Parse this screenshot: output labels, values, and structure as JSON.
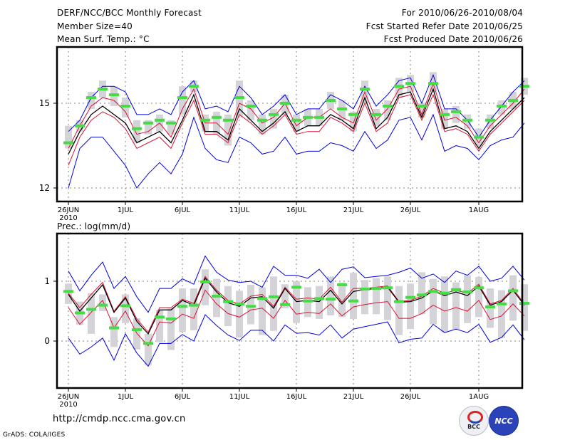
{
  "header": {
    "title": "DERF/NCC/BCC Monthly Forecast",
    "member_size": "Member Size=40",
    "variable": "Mean Surf. Temp.: °C",
    "period": "For 2010/06/26-2010/08/04",
    "started": "Fcst Started Refer Date 2010/06/25",
    "produced": "Fcst Produced Date 2010/06/26"
  },
  "footer": {
    "url": "http://cmdp.ncc.cma.gov.cn",
    "credit": "GrADS: COLA/IGES",
    "logo_left": "BCC",
    "logo_right": "NCC"
  },
  "colors": {
    "envelope": "#0000dd",
    "spread": "#dd1133",
    "mean": "#000000",
    "box": "#d3d3d8",
    "obs": "#44dd44",
    "grid": "#808080"
  },
  "chart_data": [
    {
      "type": "line",
      "title": "Mean Surf. Temp.: °C",
      "x_start": "2010-06-26",
      "x_ticks": [
        "26JUN",
        "1JUL",
        "6JUL",
        "11JUL",
        "16JUL",
        "21JUL",
        "26JUL",
        "1AUG"
      ],
      "x_tick_days": [
        0,
        5,
        10,
        15,
        20,
        25,
        30,
        36
      ],
      "x_sublabel": "2010",
      "y_ticks": [
        12,
        15
      ],
      "ylim": [
        11.5,
        17.0
      ],
      "grid": true,
      "series": [
        {
          "name": "max",
          "values": [
            14.0,
            14.4,
            15.2,
            15.6,
            15.6,
            15.4,
            14.6,
            14.6,
            14.8,
            14.6,
            15.4,
            15.8,
            14.8,
            14.9,
            14.7,
            15.6,
            15.2,
            14.6,
            14.9,
            15.3,
            14.6,
            14.8,
            14.8,
            15.3,
            15.1,
            14.8,
            15.6,
            14.9,
            15.3,
            15.8,
            15.9,
            15.0,
            16.0,
            14.8,
            14.8,
            14.4,
            13.8,
            14.4,
            14.9,
            15.4,
            15.8
          ]
        },
        {
          "name": "upper",
          "values": [
            13.4,
            14.2,
            14.9,
            15.2,
            15.1,
            14.7,
            13.9,
            14.0,
            14.3,
            13.8,
            14.8,
            15.5,
            14.3,
            14.3,
            13.9,
            15.0,
            14.8,
            14.3,
            14.5,
            15.0,
            14.2,
            14.5,
            14.5,
            14.8,
            14.5,
            14.3,
            15.4,
            14.4,
            14.8,
            15.5,
            15.6,
            14.6,
            15.7,
            14.4,
            14.5,
            14.2,
            13.6,
            14.2,
            14.6,
            15.0,
            15.5
          ]
        },
        {
          "name": "mean",
          "values": [
            13.2,
            14.0,
            14.6,
            14.9,
            14.6,
            14.3,
            13.6,
            13.8,
            14.0,
            13.6,
            14.4,
            15.3,
            14.0,
            14.0,
            13.7,
            14.8,
            14.4,
            14.0,
            14.3,
            14.7,
            14.0,
            14.2,
            14.2,
            14.6,
            14.4,
            14.1,
            15.2,
            14.1,
            14.5,
            15.3,
            15.4,
            14.5,
            15.5,
            14.1,
            14.2,
            14.0,
            13.4,
            14.0,
            14.4,
            14.8,
            15.2
          ]
        },
        {
          "name": "lower",
          "values": [
            12.8,
            13.8,
            14.4,
            14.7,
            14.5,
            14.1,
            13.4,
            13.6,
            13.8,
            13.4,
            14.3,
            15.1,
            13.9,
            13.9,
            13.6,
            14.6,
            14.3,
            13.9,
            14.2,
            14.6,
            13.9,
            14.0,
            14.0,
            14.5,
            14.3,
            14.0,
            15.0,
            14.0,
            14.3,
            15.2,
            15.3,
            14.4,
            15.3,
            14.0,
            14.1,
            13.9,
            13.3,
            13.9,
            14.3,
            14.7,
            15.1
          ]
        },
        {
          "name": "min",
          "values": [
            12.0,
            13.4,
            13.8,
            13.8,
            13.3,
            12.8,
            12.0,
            12.5,
            12.9,
            12.5,
            13.2,
            14.5,
            13.4,
            13.0,
            12.9,
            13.8,
            13.6,
            13.2,
            13.3,
            13.8,
            13.2,
            13.3,
            13.3,
            13.6,
            13.5,
            13.3,
            14.0,
            13.4,
            13.7,
            14.4,
            14.5,
            13.7,
            14.6,
            13.3,
            13.5,
            13.4,
            13.0,
            13.5,
            13.7,
            13.8,
            14.3
          ]
        },
        {
          "name": "observed",
          "values": [
            13.6,
            14.2,
            15.2,
            15.5,
            15.3,
            14.9,
            14.1,
            14.3,
            14.4,
            14.3,
            15.2,
            15.6,
            14.4,
            14.5,
            14.4,
            15.2,
            14.9,
            14.4,
            14.6,
            15.0,
            14.4,
            14.5,
            14.5,
            15.1,
            14.8,
            14.6,
            15.5,
            14.6,
            14.9,
            15.6,
            15.7,
            14.9,
            15.7,
            14.6,
            14.7,
            14.4,
            13.8,
            14.4,
            14.9,
            15.1,
            15.6
          ]
        },
        {
          "name": "box_top",
          "values": [
            14.2,
            14.4,
            15.4,
            15.8,
            15.6,
            15.2,
            14.4,
            14.4,
            14.6,
            14.4,
            15.6,
            15.8,
            14.6,
            14.7,
            14.6,
            15.8,
            15.1,
            14.6,
            14.8,
            15.3,
            14.6,
            14.8,
            14.8,
            15.4,
            15.1,
            14.7,
            15.8,
            14.8,
            15.1,
            15.9,
            16.0,
            15.0,
            16.1,
            14.8,
            14.9,
            14.6,
            14.1,
            14.6,
            15.1,
            15.4,
            15.9
          ]
        },
        {
          "name": "box_bottom",
          "values": [
            13.4,
            14.0,
            14.8,
            15.2,
            14.9,
            14.5,
            13.6,
            13.9,
            14.0,
            13.9,
            14.6,
            15.4,
            14.0,
            13.9,
            13.5,
            14.5,
            14.4,
            13.9,
            14.1,
            14.6,
            14.0,
            14.2,
            14.2,
            14.8,
            14.4,
            14.0,
            15.0,
            14.2,
            14.4,
            15.2,
            15.4,
            14.5,
            15.4,
            14.1,
            14.3,
            14.1,
            13.5,
            14.1,
            14.6,
            14.8,
            15.3
          ]
        }
      ]
    },
    {
      "type": "line",
      "title": "Prec.: log(mm/d)",
      "x_start": "2010-06-26",
      "x_ticks": [
        "26JUN",
        "1JUL",
        "6JUL",
        "11JUL",
        "16JUL",
        "21JUL",
        "26JUL",
        "1AUG"
      ],
      "x_tick_days": [
        0,
        5,
        10,
        15,
        20,
        25,
        30,
        36
      ],
      "x_sublabel": "2010",
      "y_ticks": [
        0,
        1
      ],
      "ylim": [
        -0.8,
        1.8
      ],
      "grid": true,
      "series": [
        {
          "name": "max",
          "values": [
            1.17,
            0.84,
            1.1,
            1.32,
            0.88,
            1.08,
            0.74,
            0.48,
            0.88,
            0.88,
            1.04,
            0.95,
            1.42,
            1.15,
            1.02,
            0.98,
            1.0,
            0.9,
            1.25,
            1.1,
            1.1,
            1.05,
            1.2,
            0.98,
            1.2,
            1.24,
            1.06,
            1.08,
            1.1,
            1.15,
            1.22,
            1.05,
            1.12,
            0.98,
            1.17,
            1.1,
            1.25,
            1.0,
            1.05,
            1.25,
            1.02
          ]
        },
        {
          "name": "upper",
          "values": [
            0.8,
            0.56,
            0.78,
            0.98,
            0.5,
            0.74,
            0.37,
            0.15,
            0.56,
            0.56,
            0.7,
            0.63,
            1.08,
            0.85,
            0.68,
            0.62,
            0.75,
            0.78,
            0.58,
            0.9,
            0.7,
            0.72,
            0.7,
            0.9,
            0.65,
            0.88,
            0.88,
            0.9,
            0.92,
            0.66,
            0.68,
            0.75,
            0.88,
            0.8,
            0.85,
            0.8,
            0.95,
            0.62,
            0.68,
            0.88,
            0.62
          ]
        },
        {
          "name": "mean",
          "values": [
            0.78,
            0.5,
            0.72,
            0.94,
            0.48,
            0.72,
            0.33,
            0.12,
            0.52,
            0.52,
            0.68,
            0.6,
            1.05,
            0.82,
            0.64,
            0.58,
            0.72,
            0.74,
            0.55,
            0.88,
            0.66,
            0.68,
            0.66,
            0.85,
            0.62,
            0.83,
            0.86,
            0.88,
            0.9,
            0.65,
            0.66,
            0.72,
            0.84,
            0.76,
            0.82,
            0.76,
            0.92,
            0.6,
            0.66,
            0.85,
            0.6
          ]
        },
        {
          "name": "lower",
          "values": [
            0.56,
            0.28,
            0.48,
            0.68,
            0.22,
            0.5,
            0.13,
            -0.08,
            0.32,
            0.3,
            0.45,
            0.38,
            0.85,
            0.62,
            0.46,
            0.4,
            0.52,
            0.55,
            0.38,
            0.68,
            0.45,
            0.48,
            0.46,
            0.62,
            0.42,
            0.57,
            0.61,
            0.64,
            0.66,
            0.38,
            0.38,
            0.46,
            0.6,
            0.5,
            0.56,
            0.5,
            0.68,
            0.36,
            0.42,
            0.62,
            0.42
          ]
        },
        {
          "name": "min",
          "values": [
            0.05,
            -0.22,
            -0.1,
            0.05,
            -0.32,
            0.12,
            -0.2,
            -0.42,
            -0.04,
            -0.04,
            0.11,
            0.0,
            0.44,
            0.26,
            0.1,
            0.01,
            0.18,
            0.18,
            0.0,
            0.27,
            0.13,
            0.14,
            0.1,
            0.27,
            0.05,
            0.2,
            0.24,
            0.28,
            0.32,
            -0.03,
            0.03,
            0.05,
            0.28,
            0.14,
            0.2,
            0.14,
            0.28,
            -0.02,
            0.06,
            0.27,
            0.02
          ]
        },
        {
          "name": "observed",
          "values": [
            0.83,
            0.47,
            0.53,
            0.6,
            0.22,
            0.59,
            0.19,
            -0.04,
            0.4,
            0.37,
            0.58,
            0.6,
            0.99,
            0.75,
            0.66,
            0.62,
            0.58,
            0.71,
            0.74,
            0.61,
            0.9,
            0.67,
            0.71,
            0.7,
            0.94,
            0.67,
            0.87,
            0.88,
            0.89,
            0.66,
            0.73,
            0.77,
            0.83,
            0.8,
            0.86,
            0.82,
            0.89,
            0.57,
            0.62,
            0.84,
            0.63
          ]
        },
        {
          "name": "box_top",
          "values": [
            0.96,
            0.66,
            0.8,
            0.78,
            0.4,
            0.78,
            0.38,
            0.12,
            0.52,
            0.55,
            0.88,
            0.88,
            1.2,
            1.04,
            0.92,
            0.84,
            0.94,
            0.9,
            1.08,
            0.95,
            1.0,
            0.9,
            0.92,
            1.08,
            0.98,
            1.14,
            1.02,
            1.05,
            1.08,
            0.92,
            0.96,
            1.15,
            1.04,
            1.08,
            0.98,
            1.1,
            1.07,
            0.88,
            0.85,
            1.1,
            0.95
          ]
        },
        {
          "name": "box_bottom",
          "values": [
            0.62,
            0.27,
            0.12,
            0.5,
            -0.1,
            0.3,
            -0.14,
            -0.4,
            -0.02,
            -0.15,
            0.15,
            0.18,
            0.6,
            0.4,
            0.25,
            0.06,
            0.28,
            0.1,
            0.17,
            0.55,
            0.3,
            0.4,
            0.37,
            0.43,
            0.4,
            0.37,
            0.45,
            0.45,
            0.35,
            0.1,
            0.2,
            0.45,
            0.28,
            0.15,
            0.2,
            0.3,
            0.4,
            0.22,
            0.05,
            0.34,
            0.17
          ]
        }
      ]
    }
  ]
}
